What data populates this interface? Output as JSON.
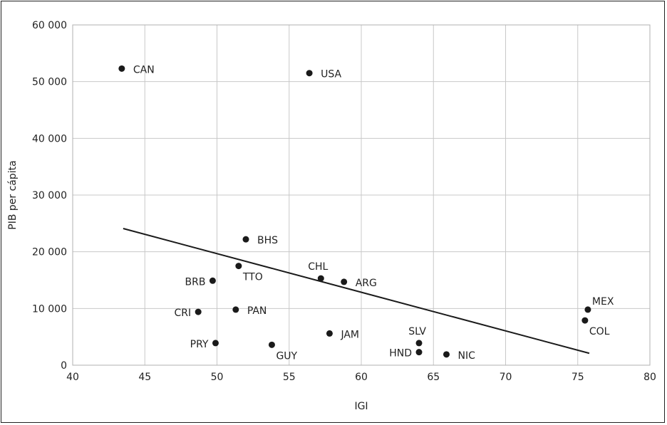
{
  "chart_data": {
    "type": "scatter",
    "title": "",
    "xlabel": "IGI",
    "ylabel": "PIB per cápita",
    "xlim": [
      40,
      80
    ],
    "ylim": [
      0,
      60000
    ],
    "x_ticks": [
      40,
      45,
      50,
      55,
      60,
      65,
      70,
      75,
      80
    ],
    "y_ticks": [
      0,
      10000,
      20000,
      30000,
      40000,
      50000,
      60000
    ],
    "x_tick_labels": [
      "40",
      "45",
      "50",
      "55",
      "60",
      "65",
      "70",
      "75",
      "80"
    ],
    "y_tick_labels": [
      "0",
      "10 000",
      "20 000",
      "30 000",
      "40 000",
      "50 000",
      "60 000"
    ],
    "grid": true,
    "points": [
      {
        "label": "CAN",
        "x": 43.4,
        "y": 52300,
        "label_pos": "right"
      },
      {
        "label": "USA",
        "x": 56.4,
        "y": 51500,
        "label_pos": "right"
      },
      {
        "label": "BHS",
        "x": 52.0,
        "y": 22200,
        "label_pos": "right"
      },
      {
        "label": "TTO",
        "x": 51.5,
        "y": 17500,
        "label_pos": "below-right"
      },
      {
        "label": "CHL",
        "x": 57.2,
        "y": 15300,
        "label_pos": "above-left"
      },
      {
        "label": "ARG",
        "x": 58.8,
        "y": 14700,
        "label_pos": "right"
      },
      {
        "label": "BRB",
        "x": 49.7,
        "y": 14900,
        "label_pos": "left"
      },
      {
        "label": "CRI",
        "x": 48.7,
        "y": 9400,
        "label_pos": "left"
      },
      {
        "label": "PAN",
        "x": 51.3,
        "y": 9800,
        "label_pos": "right"
      },
      {
        "label": "PRY",
        "x": 49.9,
        "y": 3900,
        "label_pos": "left"
      },
      {
        "label": "GUY",
        "x": 53.8,
        "y": 3600,
        "label_pos": "below-right"
      },
      {
        "label": "JAM",
        "x": 57.8,
        "y": 5600,
        "label_pos": "right"
      },
      {
        "label": "SLV",
        "x": 64.0,
        "y": 3900,
        "label_pos": "above-left"
      },
      {
        "label": "HND",
        "x": 64.0,
        "y": 2300,
        "label_pos": "left"
      },
      {
        "label": "NIC",
        "x": 65.9,
        "y": 1900,
        "label_pos": "right"
      },
      {
        "label": "MEX",
        "x": 75.7,
        "y": 9800,
        "label_pos": "above-right"
      },
      {
        "label": "COL",
        "x": 75.5,
        "y": 7900,
        "label_pos": "below-right"
      }
    ],
    "trendline": {
      "x": [
        43.5,
        75.8
      ],
      "y": [
        24100,
        2100
      ]
    }
  }
}
